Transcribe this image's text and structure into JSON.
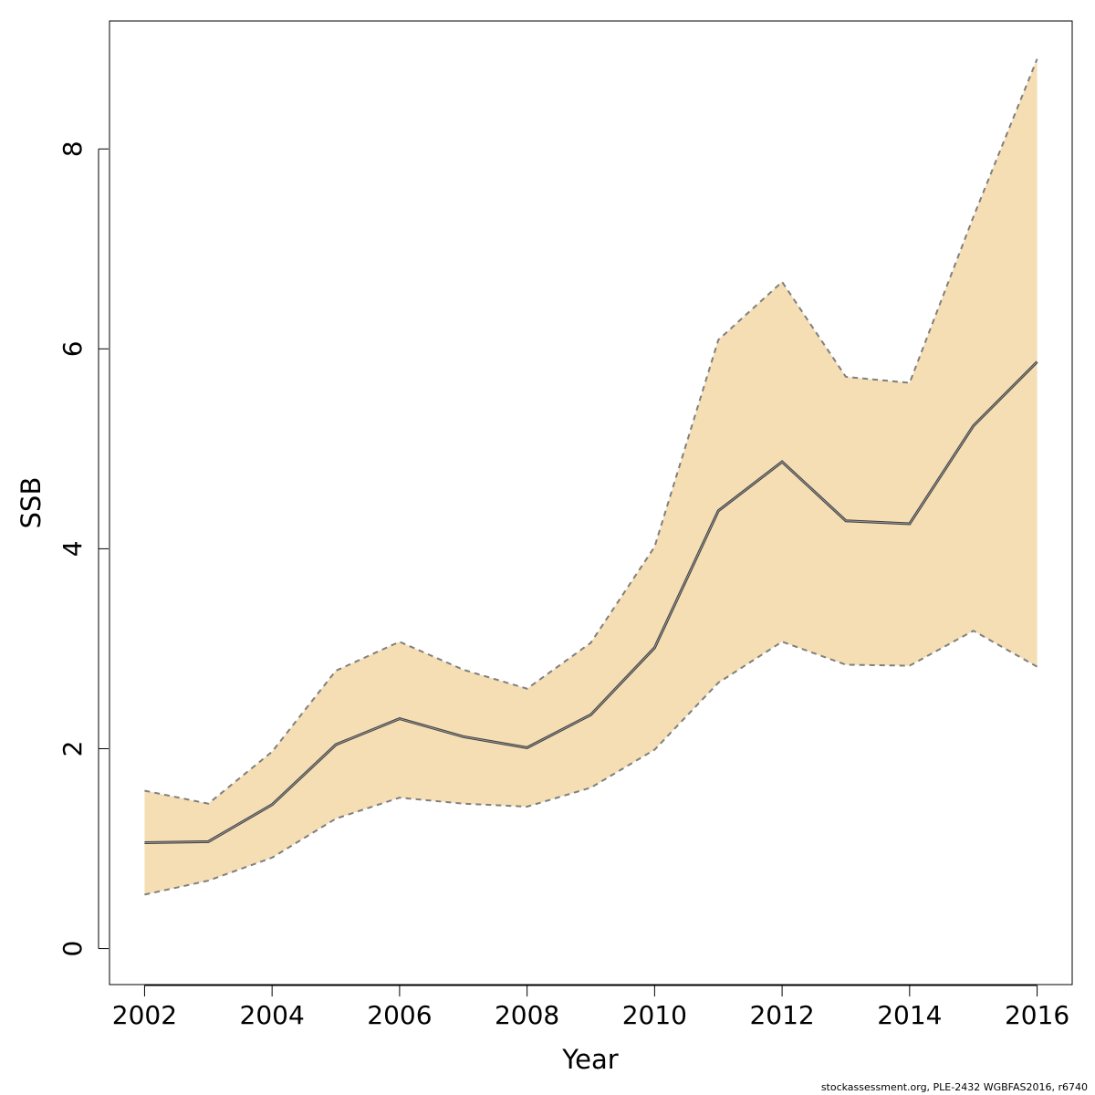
{
  "chart_data": {
    "type": "line",
    "title": "",
    "xlabel": "Year",
    "ylabel": "SSB",
    "x": [
      2002,
      2003,
      2004,
      2005,
      2006,
      2007,
      2008,
      2009,
      2010,
      2011,
      2012,
      2013,
      2014,
      2015,
      2016
    ],
    "series": [
      {
        "values": [
          1.06,
          1.07,
          1.44,
          2.04,
          2.3,
          2.12,
          2.01,
          2.34,
          3.01,
          4.38,
          4.87,
          4.28,
          4.25,
          5.23,
          5.87
        ]
      }
    ],
    "lower": [
      0.54,
      0.68,
      0.91,
      1.3,
      1.51,
      1.45,
      1.42,
      1.61,
      1.99,
      2.66,
      3.07,
      2.84,
      2.83,
      3.18,
      2.82
    ],
    "upper": [
      1.58,
      1.45,
      1.97,
      2.78,
      3.07,
      2.79,
      2.6,
      3.06,
      4.02,
      6.09,
      6.67,
      5.72,
      5.66,
      7.32,
      8.9
    ],
    "xticks": [
      2002,
      2004,
      2006,
      2008,
      2010,
      2012,
      2014,
      2016
    ],
    "yticks": [
      0,
      2,
      4,
      6,
      8
    ],
    "xlim": [
      2001.45,
      2016.55
    ],
    "ylim": [
      -0.36,
      9.28
    ],
    "band_color": "#f5deb3",
    "band_edge_color": "#7f7f7f",
    "line_color": "#404040",
    "grid": false
  },
  "footer": "stockassessment.org, PLE-2432  WGBFAS2016, r6740"
}
